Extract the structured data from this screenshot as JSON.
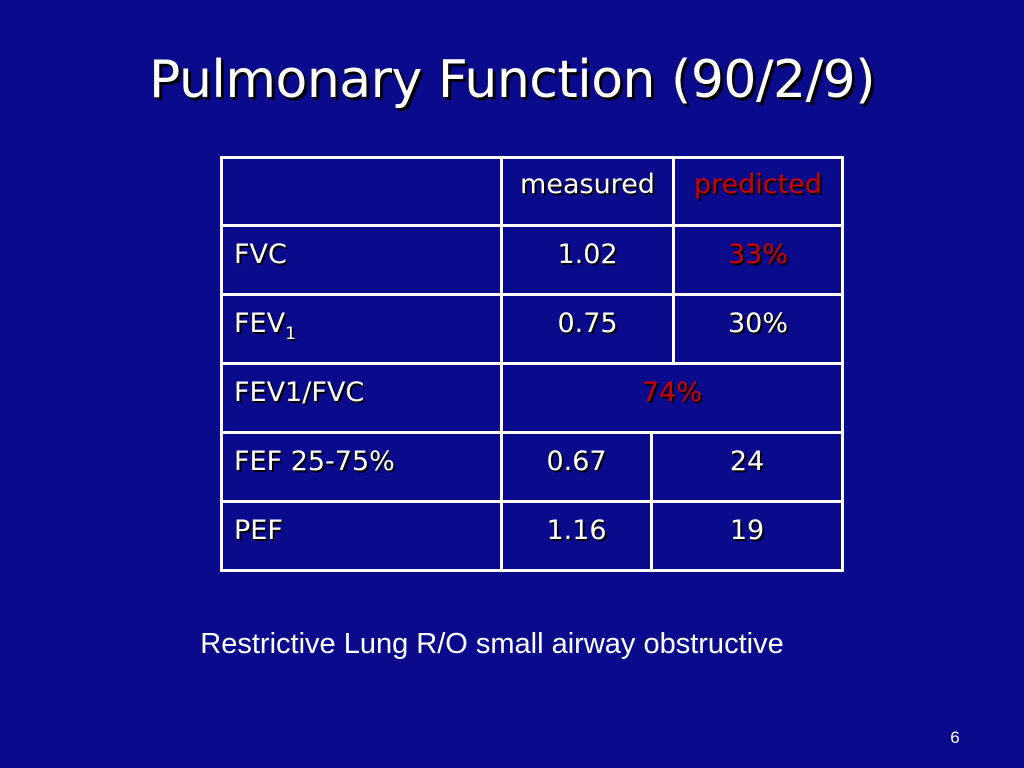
{
  "slide": {
    "title": "Pulmonary Function (90/2/9)",
    "caption": "Restrictive Lung R/O small airway obstructive",
    "page_number": "6"
  },
  "table": {
    "headers": {
      "label": "",
      "measured": "measured",
      "predicted": "predicted"
    },
    "rows": [
      {
        "label": "FVC",
        "measured": "1.02",
        "predicted": "33%"
      },
      {
        "label": "FEV",
        "label_sub": "1",
        "measured": "0.75",
        "predicted": "30%"
      },
      {
        "label": "FEV1/FVC",
        "merged_value": "74%"
      },
      {
        "label": "FEF 25-75%",
        "measured": "0.67",
        "predicted": "24"
      },
      {
        "label": "PEF",
        "measured": "1.16",
        "predicted": "19"
      }
    ]
  },
  "colors": {
    "background": "#0a0a8c",
    "text": "#ffffff",
    "highlight": "#cc0000"
  }
}
